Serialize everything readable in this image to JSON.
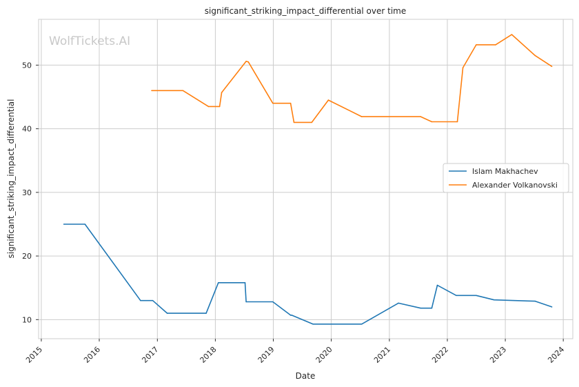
{
  "chart_data": {
    "type": "line",
    "title": "significant_striking_impact_differential over time",
    "xlabel": "Date",
    "ylabel": "significant_striking_impact_differential",
    "watermark": "WolfTickets.AI",
    "x_ticks": [
      "2015",
      "2016",
      "2017",
      "2018",
      "2019",
      "2020",
      "2021",
      "2022",
      "2023",
      "2024"
    ],
    "y_ticks": [
      10,
      20,
      30,
      40,
      50
    ],
    "xlim": [
      "2014-12-15",
      "2024-03-01"
    ],
    "ylim": [
      7.0,
      57.2
    ],
    "grid": true,
    "legend_position": "center-right",
    "series": [
      {
        "name": "Islam Makhachev",
        "color": "#1f77b4",
        "points": [
          [
            "2015-05-23",
            25.0
          ],
          [
            "2015-10-03",
            25.0
          ],
          [
            "2016-09-17",
            13.0
          ],
          [
            "2016-12-03",
            13.0
          ],
          [
            "2017-03-04",
            11.0
          ],
          [
            "2017-11-04",
            11.0
          ],
          [
            "2018-01-20",
            15.8
          ],
          [
            "2018-07-07",
            15.8
          ],
          [
            "2018-07-14",
            12.8
          ],
          [
            "2018-12-29",
            12.8
          ],
          [
            "2019-04-20",
            10.7
          ],
          [
            "2019-04-27",
            10.7
          ],
          [
            "2019-09-07",
            9.3
          ],
          [
            "2020-07-11",
            9.3
          ],
          [
            "2021-02-27",
            12.6
          ],
          [
            "2021-07-17",
            11.8
          ],
          [
            "2021-09-25",
            11.8
          ],
          [
            "2021-10-30",
            15.4
          ],
          [
            "2022-02-26",
            13.8
          ],
          [
            "2022-07-02",
            13.8
          ],
          [
            "2022-10-22",
            13.1
          ],
          [
            "2023-07-08",
            12.9
          ],
          [
            "2023-10-21",
            12.0
          ]
        ]
      },
      {
        "name": "Alexander Volkanovski",
        "color": "#ff7f0e",
        "points": [
          [
            "2016-11-26",
            46.0
          ],
          [
            "2017-06-11",
            46.0
          ],
          [
            "2017-11-19",
            43.5
          ],
          [
            "2018-01-28",
            43.5
          ],
          [
            "2018-02-10",
            45.7
          ],
          [
            "2018-07-14",
            50.6
          ],
          [
            "2018-07-28",
            50.5
          ],
          [
            "2018-12-29",
            44.0
          ],
          [
            "2019-04-20",
            44.0
          ],
          [
            "2019-05-11",
            41.0
          ],
          [
            "2019-08-31",
            41.0
          ],
          [
            "2019-12-14",
            44.5
          ],
          [
            "2020-07-11",
            41.9
          ],
          [
            "2021-07-17",
            41.9
          ],
          [
            "2021-09-25",
            41.1
          ],
          [
            "2022-03-05",
            41.1
          ],
          [
            "2022-04-09",
            49.6
          ],
          [
            "2022-07-02",
            53.2
          ],
          [
            "2022-11-01",
            53.2
          ],
          [
            "2023-02-11",
            54.8
          ],
          [
            "2023-07-08",
            51.5
          ],
          [
            "2023-10-21",
            49.8
          ]
        ]
      }
    ]
  }
}
